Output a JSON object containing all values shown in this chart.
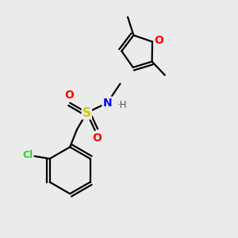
{
  "background_color": "#ebebeb",
  "bond_color": "#000000",
  "bond_width": 1.6,
  "atom_colors": {
    "C": "#000000",
    "H": "#505050",
    "O": "#ff0000",
    "N": "#0000ff",
    "S": "#cccc00",
    "Cl": "#33cc33"
  },
  "figsize": [
    3.0,
    3.0
  ],
  "dpi": 100
}
